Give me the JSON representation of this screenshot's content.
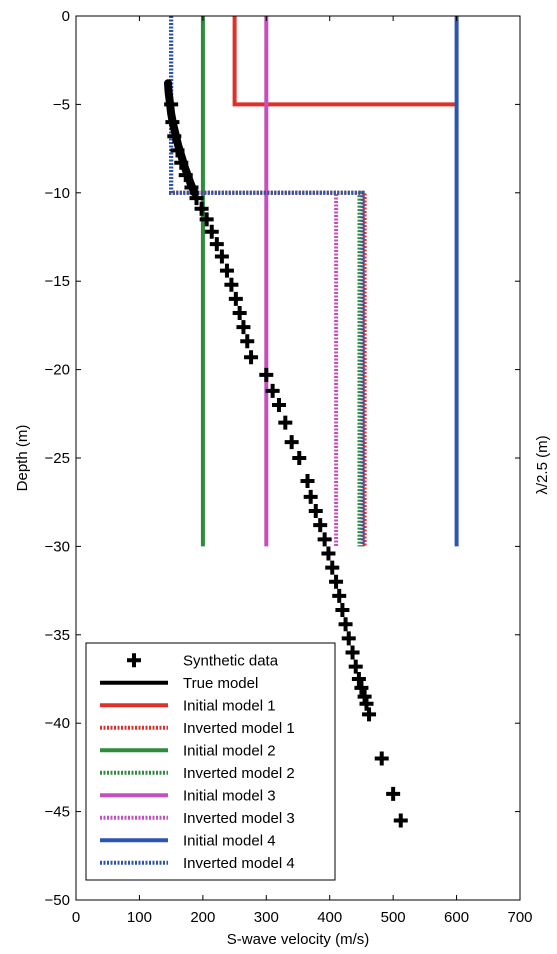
{
  "chart_data": {
    "type": "line",
    "xlabel": "S-wave velocity (m/s)",
    "ylabel": "Depth (m)",
    "right_label": "λ/2.5 (m)",
    "xlim": [
      0,
      700
    ],
    "ylim": [
      -50,
      0
    ],
    "xticks": [
      0,
      100,
      200,
      300,
      400,
      500,
      600,
      700
    ],
    "yticks": [
      0,
      -5,
      -10,
      -15,
      -20,
      -25,
      -30,
      -35,
      -40,
      -45,
      -50
    ],
    "grid": false,
    "legend_position": "bottom-left",
    "series": [
      {
        "name": "Synthetic data",
        "style": "markers",
        "color": "#000000",
        "points": [
          [
            150,
            -5.0
          ],
          [
            152,
            -6.0
          ],
          [
            155,
            -6.8
          ],
          [
            160,
            -7.6
          ],
          [
            166,
            -8.3
          ],
          [
            173,
            -9.0
          ],
          [
            182,
            -9.7
          ],
          [
            190,
            -10.3
          ],
          [
            198,
            -10.9
          ],
          [
            206,
            -11.5
          ],
          [
            214,
            -12.2
          ],
          [
            222,
            -12.9
          ],
          [
            230,
            -13.6
          ],
          [
            238,
            -14.4
          ],
          [
            245,
            -15.2
          ],
          [
            252,
            -16.0
          ],
          [
            258,
            -16.8
          ],
          [
            264,
            -17.6
          ],
          [
            270,
            -18.4
          ],
          [
            276,
            -19.3
          ],
          [
            300,
            -20.3
          ],
          [
            310,
            -21.2
          ],
          [
            320,
            -22.0
          ],
          [
            330,
            -23.0
          ],
          [
            340,
            -24.1
          ],
          [
            352,
            -25.0
          ],
          [
            365,
            -26.3
          ],
          [
            370,
            -27.2
          ],
          [
            378,
            -28.0
          ],
          [
            385,
            -28.8
          ],
          [
            392,
            -29.6
          ],
          [
            398,
            -30.4
          ],
          [
            404,
            -31.2
          ],
          [
            410,
            -32.0
          ],
          [
            415,
            -32.8
          ],
          [
            420,
            -33.6
          ],
          [
            425,
            -34.4
          ],
          [
            430,
            -35.2
          ],
          [
            436,
            -36.0
          ],
          [
            441,
            -36.8
          ],
          [
            446,
            -37.5
          ],
          [
            450,
            -38.0
          ],
          [
            455,
            -38.5
          ],
          [
            458,
            -38.9
          ],
          [
            462,
            -39.5
          ],
          [
            482,
            -42.0
          ],
          [
            500,
            -44.0
          ],
          [
            512,
            -45.5
          ]
        ]
      },
      {
        "name": "True model",
        "style": "solid",
        "color": "#000000",
        "points": [
          [
            145,
            -3.8
          ],
          [
            146,
            -4.3
          ],
          [
            148,
            -4.9
          ],
          [
            150,
            -5.5
          ],
          [
            153,
            -6.1
          ],
          [
            157,
            -6.7
          ],
          [
            161,
            -7.3
          ],
          [
            166,
            -7.9
          ],
          [
            171,
            -8.5
          ],
          [
            176,
            -9.0
          ],
          [
            181,
            -9.5
          ],
          [
            187,
            -10.0
          ]
        ]
      },
      {
        "name": "Initial model 1",
        "style": "solid",
        "color": "#e0302a",
        "points": [
          [
            250,
            0
          ],
          [
            250,
            -5
          ],
          [
            600,
            -5
          ]
        ]
      },
      {
        "name": "Inverted model 1",
        "style": "dotted",
        "color": "#e0302a",
        "points": [
          [
            150,
            0
          ],
          [
            150,
            -10
          ],
          [
            455,
            -10
          ],
          [
            455,
            -30
          ]
        ]
      },
      {
        "name": "Initial model 2",
        "style": "solid",
        "color": "#2e8b3c",
        "points": [
          [
            200,
            0
          ],
          [
            200,
            -30
          ]
        ]
      },
      {
        "name": "Inverted model 2",
        "style": "dotted",
        "color": "#2e8b3c",
        "points": [
          [
            150,
            0
          ],
          [
            150,
            -10
          ],
          [
            447,
            -10
          ],
          [
            447,
            -30
          ]
        ]
      },
      {
        "name": "Initial model 3",
        "style": "solid",
        "color": "#c64fc0",
        "points": [
          [
            300,
            0
          ],
          [
            300,
            -30
          ]
        ]
      },
      {
        "name": "Inverted model 3",
        "style": "dotted",
        "color": "#c64fc0",
        "points": [
          [
            150,
            0
          ],
          [
            150,
            -10
          ],
          [
            410,
            -10
          ],
          [
            410,
            -30
          ]
        ]
      },
      {
        "name": "Initial model 4",
        "style": "solid",
        "color": "#2a55b0",
        "points": [
          [
            600,
            0
          ],
          [
            600,
            -30
          ]
        ]
      },
      {
        "name": "Inverted model 4",
        "style": "dotted",
        "color": "#2a55b0",
        "points": [
          [
            150,
            0
          ],
          [
            150,
            -10
          ],
          [
            452,
            -10
          ],
          [
            452,
            -30
          ]
        ]
      }
    ]
  }
}
